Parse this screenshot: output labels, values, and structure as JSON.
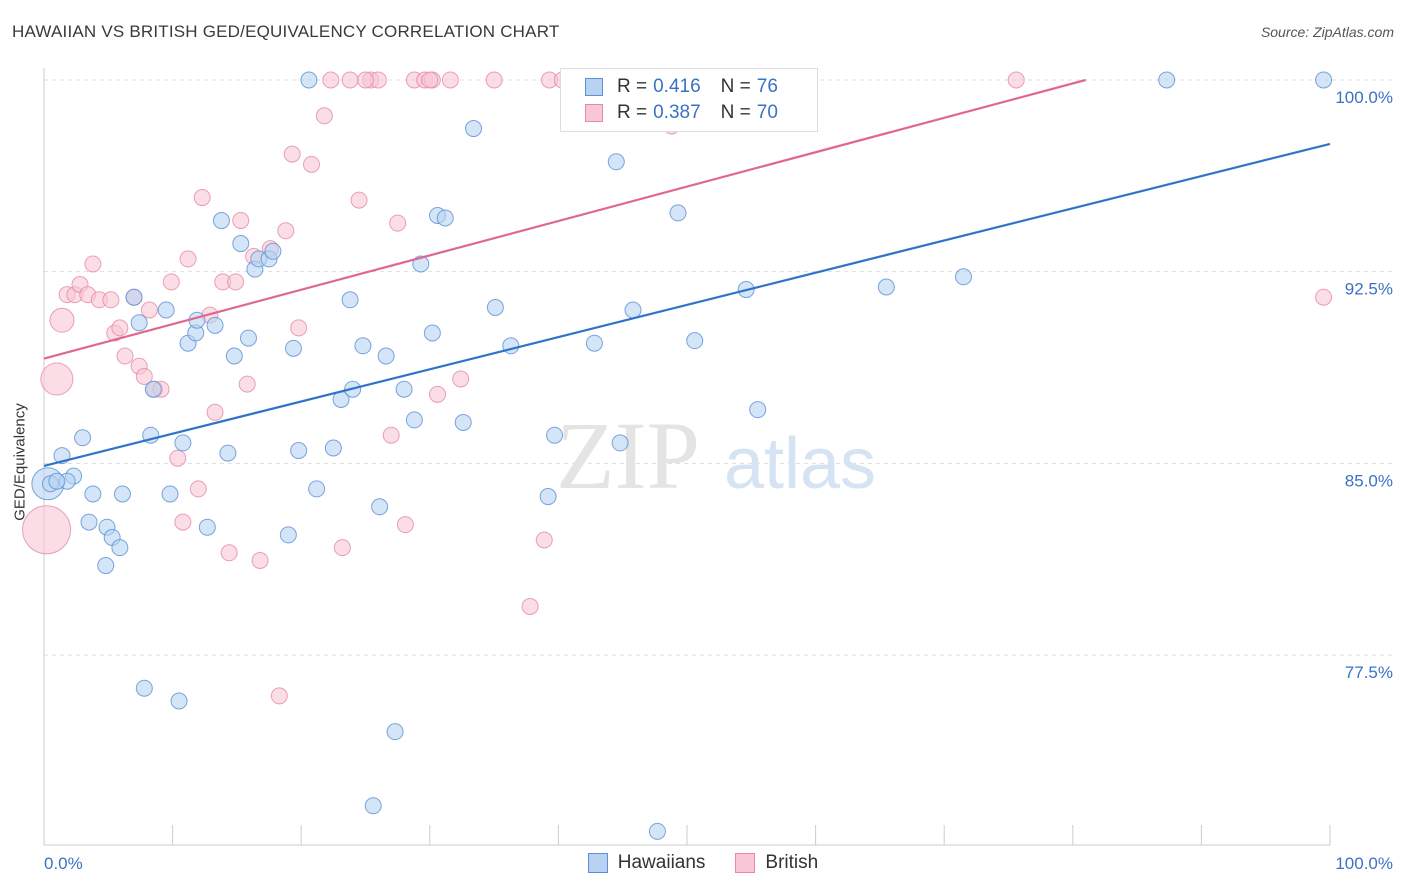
{
  "title": "HAWAIIAN VS BRITISH GED/EQUIVALENCY CORRELATION CHART",
  "source": "Source: ZipAtlas.com",
  "watermark": {
    "zip": "ZIP",
    "atlas": "atlas"
  },
  "legend": {
    "r_label": "R =",
    "n_label": "N =",
    "hawaiians": {
      "r": "0.416",
      "n": "76"
    },
    "british": {
      "r": "0.387",
      "n": "70"
    }
  },
  "colors": {
    "hawaiians_fill": "#b8d3f2",
    "hawaiians_stroke": "#5b8fd6",
    "hawaiians_line": "#2f74c8",
    "british_fill": "#f8c6d4",
    "british_stroke": "#e58aa6",
    "british_line": "#e0688e",
    "tick_label": "#3a72c4",
    "grid": "#dddddd"
  },
  "chart_data": {
    "type": "scatter",
    "title": "HAWAIIAN VS BRITISH GED/EQUIVALENCY CORRELATION CHART",
    "xlabel": "",
    "ylabel": "GED/Equivalency",
    "xlim": [
      0,
      100
    ],
    "ylim": [
      70.5,
      101
    ],
    "x_tick_labels": [
      "0.0%",
      "100.0%"
    ],
    "y_ticks": [
      77.5,
      85.0,
      92.5,
      100.0
    ],
    "y_tick_labels": [
      "77.5%",
      "85.0%",
      "92.5%",
      "100.0%"
    ],
    "grid": "horizontal dashed",
    "legend_position": "bottom",
    "series": [
      {
        "name": "Hawaiians",
        "trend": {
          "x": [
            0,
            100
          ],
          "y": [
            84.9,
            97.5
          ]
        },
        "points": [
          [
            0.3,
            84.2,
            2
          ],
          [
            1.4,
            85.3,
            1
          ],
          [
            2.3,
            84.5,
            1
          ],
          [
            1.8,
            84.3,
            1
          ],
          [
            3.0,
            86.0,
            1
          ],
          [
            3.5,
            82.7,
            1
          ],
          [
            3.8,
            83.8,
            1
          ],
          [
            4.8,
            81.0,
            1
          ],
          [
            4.9,
            82.5,
            1
          ],
          [
            5.3,
            82.1,
            1
          ],
          [
            5.9,
            81.7,
            1
          ],
          [
            6.1,
            83.8,
            1
          ],
          [
            7.0,
            91.5,
            1
          ],
          [
            7.4,
            90.5,
            1
          ],
          [
            7.8,
            76.2,
            1
          ],
          [
            8.3,
            86.1,
            1
          ],
          [
            8.5,
            87.9,
            1
          ],
          [
            9.5,
            91.0,
            1
          ],
          [
            9.8,
            83.8,
            1
          ],
          [
            10.5,
            75.7,
            1
          ],
          [
            10.8,
            85.8,
            1
          ],
          [
            11.2,
            89.7,
            1
          ],
          [
            11.8,
            90.1,
            1
          ],
          [
            11.9,
            90.6,
            1
          ],
          [
            12.7,
            82.5,
            1
          ],
          [
            13.3,
            90.4,
            1
          ],
          [
            13.8,
            94.5,
            1
          ],
          [
            14.3,
            85.4,
            1
          ],
          [
            14.8,
            89.2,
            1
          ],
          [
            15.3,
            93.6,
            1
          ],
          [
            15.9,
            89.9,
            1
          ],
          [
            16.4,
            92.6,
            1
          ],
          [
            16.7,
            93.0,
            1
          ],
          [
            17.5,
            93.0,
            1
          ],
          [
            17.8,
            93.3,
            1
          ],
          [
            19.0,
            82.2,
            1
          ],
          [
            19.4,
            89.5,
            1
          ],
          [
            19.8,
            85.5,
            1
          ],
          [
            20.6,
            100.0,
            1
          ],
          [
            21.2,
            84.0,
            1
          ],
          [
            22.5,
            85.6,
            1
          ],
          [
            23.1,
            87.5,
            1
          ],
          [
            23.8,
            91.4,
            1
          ],
          [
            24.0,
            87.9,
            1
          ],
          [
            24.8,
            89.6,
            1
          ],
          [
            25.6,
            71.6,
            1
          ],
          [
            26.1,
            83.3,
            1
          ],
          [
            26.6,
            89.2,
            1
          ],
          [
            27.3,
            74.5,
            1
          ],
          [
            28.0,
            87.9,
            1
          ],
          [
            28.8,
            86.7,
            1
          ],
          [
            29.3,
            92.8,
            1
          ],
          [
            30.2,
            90.1,
            1
          ],
          [
            30.6,
            94.7,
            1
          ],
          [
            31.2,
            94.6,
            1
          ],
          [
            32.6,
            86.6,
            1
          ],
          [
            33.4,
            98.1,
            1
          ],
          [
            35.1,
            91.1,
            1
          ],
          [
            36.3,
            89.6,
            1
          ],
          [
            39.2,
            83.7,
            1
          ],
          [
            39.7,
            86.1,
            1
          ],
          [
            42.8,
            89.7,
            1
          ],
          [
            44.5,
            96.8,
            1
          ],
          [
            44.8,
            85.8,
            1
          ],
          [
            45.8,
            91.0,
            1
          ],
          [
            47.7,
            70.6,
            1
          ],
          [
            49.3,
            94.8,
            1
          ],
          [
            50.6,
            89.8,
            1
          ],
          [
            54.6,
            91.8,
            1
          ],
          [
            55.5,
            87.1,
            1
          ],
          [
            65.5,
            91.9,
            1
          ],
          [
            71.5,
            92.3,
            1
          ],
          [
            87.3,
            100.0,
            1
          ],
          [
            99.5,
            100.0,
            1
          ],
          [
            0.5,
            84.2,
            1
          ],
          [
            1.0,
            84.3,
            1
          ]
        ]
      },
      {
        "name": "British",
        "trend": {
          "x": [
            0,
            81
          ],
          "y": [
            89.1,
            100.0
          ]
        },
        "points": [
          [
            0.2,
            82.4,
            3
          ],
          [
            1.0,
            88.3,
            2
          ],
          [
            1.4,
            90.6,
            1.5
          ],
          [
            1.8,
            91.6,
            1
          ],
          [
            2.4,
            91.6,
            1
          ],
          [
            2.8,
            92.0,
            1
          ],
          [
            3.4,
            91.6,
            1
          ],
          [
            3.8,
            92.8,
            1
          ],
          [
            4.3,
            91.4,
            1
          ],
          [
            5.2,
            91.4,
            1
          ],
          [
            5.5,
            90.1,
            1
          ],
          [
            5.9,
            90.3,
            1
          ],
          [
            6.3,
            89.2,
            1
          ],
          [
            7.0,
            91.5,
            1
          ],
          [
            7.4,
            88.8,
            1
          ],
          [
            7.8,
            88.4,
            1
          ],
          [
            8.2,
            91.0,
            1
          ],
          [
            8.6,
            87.9,
            1
          ],
          [
            9.1,
            87.9,
            1
          ],
          [
            9.9,
            92.1,
            1
          ],
          [
            10.4,
            85.2,
            1
          ],
          [
            10.8,
            82.7,
            1
          ],
          [
            11.2,
            93.0,
            1
          ],
          [
            12.0,
            84.0,
            1
          ],
          [
            12.3,
            95.4,
            1
          ],
          [
            12.9,
            90.8,
            1
          ],
          [
            13.3,
            87.0,
            1
          ],
          [
            13.9,
            92.1,
            1
          ],
          [
            14.4,
            81.5,
            1
          ],
          [
            14.9,
            92.1,
            1
          ],
          [
            15.3,
            94.5,
            1
          ],
          [
            15.8,
            88.1,
            1
          ],
          [
            16.3,
            93.1,
            1
          ],
          [
            16.8,
            81.2,
            1
          ],
          [
            17.6,
            93.4,
            1
          ],
          [
            18.3,
            75.9,
            1
          ],
          [
            18.8,
            94.1,
            1
          ],
          [
            19.3,
            97.1,
            1
          ],
          [
            19.8,
            90.3,
            1
          ],
          [
            20.8,
            96.7,
            1
          ],
          [
            21.8,
            98.6,
            1
          ],
          [
            22.3,
            100.0,
            1
          ],
          [
            23.2,
            81.7,
            1
          ],
          [
            23.8,
            100.0,
            1
          ],
          [
            24.5,
            95.3,
            1
          ],
          [
            25.4,
            100.0,
            1
          ],
          [
            26.0,
            100.0,
            1
          ],
          [
            27.0,
            86.1,
            1
          ],
          [
            27.5,
            94.4,
            1
          ],
          [
            28.1,
            82.6,
            1
          ],
          [
            28.8,
            100.0,
            1
          ],
          [
            29.6,
            100.0,
            1
          ],
          [
            30.2,
            100.0,
            1
          ],
          [
            30.6,
            87.7,
            1
          ],
          [
            31.6,
            100.0,
            1
          ],
          [
            32.4,
            88.3,
            1
          ],
          [
            35.0,
            100.0,
            1
          ],
          [
            37.8,
            79.4,
            1
          ],
          [
            38.9,
            82.0,
            1
          ],
          [
            39.3,
            100.0,
            1
          ],
          [
            40.3,
            100.0,
            1
          ],
          [
            47.7,
            100.0,
            1
          ],
          [
            48.3,
            100.0,
            1
          ],
          [
            48.8,
            98.2,
            1
          ],
          [
            52.0,
            100.0,
            1
          ],
          [
            75.6,
            100.0,
            1
          ],
          [
            99.5,
            91.5,
            1
          ],
          [
            30.0,
            100.0,
            1
          ],
          [
            25.0,
            100.0,
            1
          ],
          [
            51.0,
            100.0,
            1
          ]
        ]
      }
    ]
  }
}
